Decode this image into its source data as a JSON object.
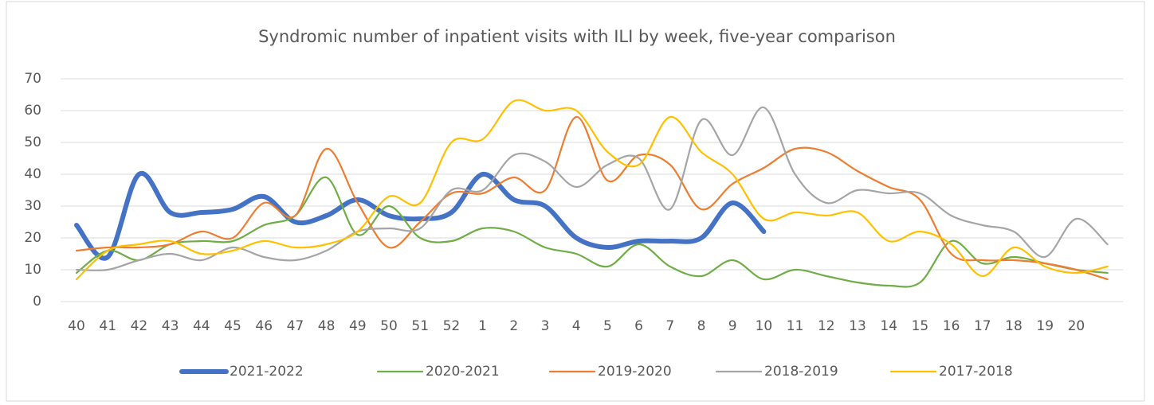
{
  "chart_data": {
    "type": "line",
    "title": "Syndromic number of inpatient visits with ILI by week, five-year comparison",
    "categories": [
      "40",
      "41",
      "42",
      "43",
      "44",
      "45",
      "46",
      "47",
      "48",
      "49",
      "50",
      "51",
      "52",
      "1",
      "2",
      "3",
      "4",
      "5",
      "6",
      "7",
      "8",
      "9",
      "10",
      "11",
      "12",
      "13",
      "14",
      "15",
      "16",
      "17",
      "18",
      "19",
      "20",
      null
    ],
    "series": [
      {
        "name": "2021-2022",
        "color": "#4472c4",
        "values": [
          24,
          14,
          40,
          28,
          28,
          29,
          33,
          25,
          27,
          32,
          27,
          26,
          28,
          40,
          32,
          30,
          20,
          17,
          19,
          19,
          20,
          31,
          22,
          null,
          null,
          null,
          null,
          null,
          null,
          null,
          null,
          null,
          null,
          null
        ]
      },
      {
        "name": "2020-2021",
        "color": "#70ad47",
        "values": [
          9,
          16,
          13,
          18,
          19,
          19,
          24,
          27,
          39,
          21,
          30,
          20,
          19,
          23,
          22,
          17,
          15,
          11,
          18,
          11,
          8,
          13,
          7,
          10,
          8,
          6,
          5,
          6,
          19,
          12,
          14,
          12,
          10,
          9
        ]
      },
      {
        "name": "2019-2020",
        "color": "#ed7d31",
        "values": [
          16,
          17,
          17,
          18,
          22,
          20,
          31,
          27,
          48,
          31,
          17,
          25,
          34,
          34,
          39,
          35,
          58,
          38,
          46,
          43,
          29,
          37,
          42,
          48,
          47,
          41,
          36,
          32,
          15,
          13,
          13,
          12,
          10,
          7
        ]
      },
      {
        "name": "2018-2019",
        "color": "#a5a5a5",
        "values": [
          10,
          10,
          13,
          15,
          13,
          17,
          14,
          13,
          16,
          22,
          23,
          23,
          35,
          35,
          46,
          44,
          36,
          43,
          45,
          29,
          57,
          46,
          61,
          40,
          31,
          35,
          34,
          34,
          27,
          24,
          22,
          14,
          26,
          18
        ]
      },
      {
        "name": "2017-2018",
        "color": "#ffc000",
        "values": [
          7,
          16,
          18,
          19,
          15,
          16,
          19,
          17,
          18,
          22,
          33,
          31,
          50,
          51,
          63,
          60,
          60,
          47,
          43,
          58,
          47,
          40,
          26,
          28,
          27,
          28,
          19,
          22,
          18,
          8,
          17,
          11,
          9,
          11
        ]
      }
    ],
    "ylim": [
      0,
      70
    ],
    "yticks": [
      0,
      10,
      20,
      30,
      40,
      50,
      60,
      70
    ],
    "grid": true,
    "legend": "bottom"
  }
}
